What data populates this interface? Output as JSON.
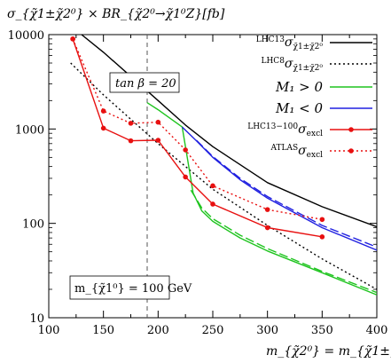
{
  "chart_data": {
    "type": "line",
    "ylabel": "σ_{χ̃1±χ̃2⁰} × BR_{χ̃2⁰→χ̃1⁰Z}[fb]",
    "xlabel": "m_{χ̃2⁰} = m_{χ̃1±}[GeV]",
    "xlim": [
      100,
      400
    ],
    "ylim": [
      10,
      10000
    ],
    "y_scale": "log",
    "grid": false,
    "legend_position": "top-right",
    "x_ticks": [
      "100",
      "150",
      "200",
      "250",
      "300",
      "350",
      "400"
    ],
    "y_ticks": [
      "10",
      "100",
      "1000",
      "10000"
    ],
    "annotations": {
      "tan_beta": "tan β = 20",
      "m_chi1": "m_{χ̃1⁰} = 100 GeV",
      "vline_x": 190
    },
    "legend": [
      {
        "label_main": "σ",
        "label_pre": "LHC13",
        "label_sub": "χ̃1±χ̃2⁰",
        "color": "#000000",
        "style": "solid"
      },
      {
        "label_main": "σ",
        "label_pre": "LHC8",
        "label_sub": "χ̃1±χ̃2⁰",
        "color": "#000000",
        "style": "dotted"
      },
      {
        "label_main": "M₁ > 0",
        "color": "#1fc41f",
        "style": "solid"
      },
      {
        "label_main": "M₁ < 0",
        "color": "#2020e0",
        "style": "solid"
      },
      {
        "label_main": "σ",
        "label_pre": "LHC13−100",
        "label_sub": "excl",
        "color": "#e81010",
        "style": "solid-markers"
      },
      {
        "label_main": "σ",
        "label_pre": "ATLAS",
        "label_sub": "excl",
        "color": "#e81010",
        "style": "dotted-markers"
      }
    ],
    "series": [
      {
        "name": "LHC13 σ",
        "color": "#000000",
        "style": "solid",
        "x": [
          130,
          150,
          200,
          225,
          250,
          300,
          350,
          400
        ],
        "y": [
          10000,
          6500,
          2000,
          1100,
          650,
          270,
          150,
          92
        ]
      },
      {
        "name": "LHC8 σ",
        "color": "#000000",
        "style": "dotted",
        "x": [
          120,
          150,
          200,
          250,
          300,
          350,
          400
        ],
        "y": [
          5000,
          2300,
          700,
          230,
          95,
          42,
          20
        ]
      },
      {
        "name": "M₁ > 0",
        "color": "#1fc41f",
        "style": "solid",
        "x": [
          190,
          200,
          222,
          228,
          232,
          240,
          250,
          275,
          300,
          350,
          400
        ],
        "y": [
          1900,
          1600,
          1050,
          400,
          210,
          135,
          105,
          70,
          51,
          30,
          17.5
        ]
      },
      {
        "name": "M₁ > 0 (dash)",
        "color": "#1fc41f",
        "style": "dashed",
        "x": [
          230,
          240,
          250,
          275,
          300,
          350,
          400
        ],
        "y": [
          225,
          145,
          112,
          75,
          54,
          31,
          18.5
        ]
      },
      {
        "name": "M₁ < 0",
        "color": "#2020e0",
        "style": "solid",
        "x": [
          222,
          235,
          250,
          275,
          300,
          350,
          400
        ],
        "y": [
          1050,
          750,
          500,
          290,
          185,
          90,
          52
        ]
      },
      {
        "name": "M₁ < 0 (dash)",
        "color": "#2020e0",
        "style": "dashed",
        "x": [
          235,
          250,
          275,
          300,
          350,
          400
        ],
        "y": [
          760,
          510,
          300,
          192,
          95,
          56
        ]
      },
      {
        "name": "LHC13−100 σ_excl",
        "color": "#e81010",
        "style": "solid-markers",
        "x": [
          122,
          150,
          175,
          200,
          225,
          250,
          300,
          350
        ],
        "y": [
          9000,
          1020,
          750,
          760,
          310,
          160,
          90,
          72
        ]
      },
      {
        "name": "ATLAS σ_excl",
        "color": "#e81010",
        "style": "dotted-markers",
        "x": [
          122,
          150,
          175,
          200,
          225,
          250,
          300,
          350
        ],
        "y": [
          9000,
          1550,
          1150,
          1180,
          600,
          250,
          140,
          110
        ]
      }
    ]
  }
}
